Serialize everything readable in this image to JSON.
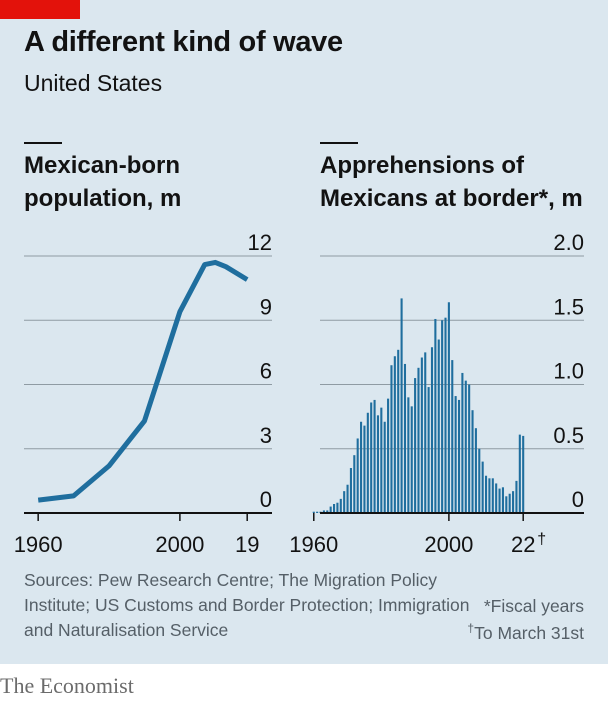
{
  "header": {
    "title": "A different kind of wave",
    "subtitle": "United States"
  },
  "chart_data": [
    {
      "type": "line",
      "title": "Mexican-born population, m",
      "x": [
        1960,
        1970,
        1980,
        1990,
        2000,
        2007,
        2010,
        2013,
        2019
      ],
      "y": [
        0.6,
        0.8,
        2.2,
        4.3,
        9.4,
        11.6,
        11.7,
        11.5,
        10.9
      ],
      "xlim": [
        1956,
        2026
      ],
      "ylim": [
        0,
        12
      ],
      "yticks": [
        "0",
        "3",
        "6",
        "9",
        "12"
      ],
      "xticks": [
        "1960",
        "2000",
        "19"
      ],
      "grid": true,
      "color": "#1f6e9e"
    },
    {
      "type": "bar",
      "title": "Apprehensions of Mexicans at border*, m",
      "x_start": 1960,
      "values": [
        0.01,
        0.01,
        0.01,
        0.02,
        0.02,
        0.05,
        0.07,
        0.08,
        0.11,
        0.17,
        0.22,
        0.35,
        0.45,
        0.58,
        0.71,
        0.68,
        0.78,
        0.86,
        0.88,
        0.76,
        0.82,
        0.71,
        0.89,
        1.15,
        1.22,
        1.27,
        1.67,
        1.16,
        0.9,
        0.83,
        1.05,
        1.13,
        1.21,
        1.25,
        0.98,
        1.29,
        1.51,
        1.35,
        1.5,
        1.52,
        1.64,
        1.19,
        0.91,
        0.88,
        1.09,
        1.03,
        1.0,
        0.8,
        0.66,
        0.5,
        0.4,
        0.29,
        0.27,
        0.27,
        0.23,
        0.19,
        0.2,
        0.13,
        0.15,
        0.17,
        0.25,
        0.61,
        0.6
      ],
      "xlim": [
        1950,
        2040
      ],
      "ylim": [
        0,
        2.0
      ],
      "yticks": [
        "0",
        "0.5",
        "1.0",
        "1.5",
        "2.0"
      ],
      "xticks": [
        "1960",
        "2000",
        "22"
      ],
      "xtick_mark": "†",
      "grid": true,
      "color": "#1f6e9e"
    }
  ],
  "footer": {
    "source": "Sources: Pew Research Centre; The Migration Policy Institute; US Customs and Border Protection; Immigration and Naturalisation Service",
    "note_fiscal": "*Fiscal years",
    "note_march": "To March 31st",
    "dagger": "†",
    "logo": "The Economist"
  }
}
